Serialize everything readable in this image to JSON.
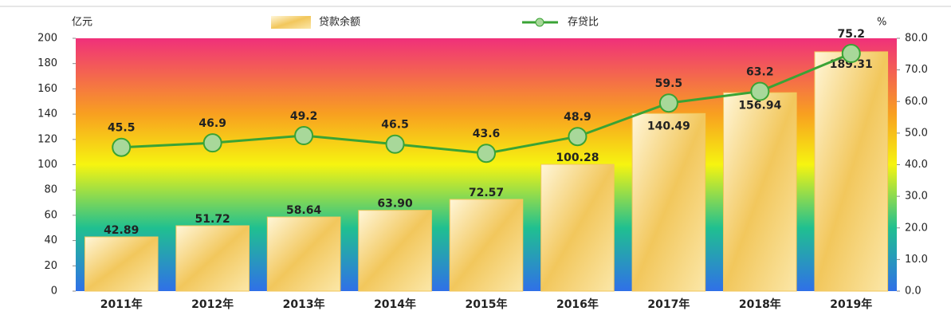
{
  "chart_data": {
    "type": "combo",
    "y_label": "亿元",
    "y2_label": "%",
    "categories": [
      "2011年",
      "2012年",
      "2013年",
      "2014年",
      "2015年",
      "2016年",
      "2017年",
      "2018年",
      "2019年"
    ],
    "series": [
      {
        "name": "贷款余额",
        "type": "bar",
        "color": "#f2c75c",
        "values": [
          42.89,
          51.72,
          58.64,
          63.9,
          72.57,
          100.28,
          140.49,
          156.94,
          189.31
        ],
        "value_labels": [
          "42.89",
          "51.72",
          "58.64",
          "63.90",
          "72.57",
          "100.28",
          "140.49",
          "156.94",
          "189.31"
        ]
      },
      {
        "name": "存贷比",
        "type": "line",
        "axis": "y2",
        "color": "#3aa335",
        "values": [
          45.5,
          46.9,
          49.2,
          46.5,
          43.6,
          48.9,
          59.5,
          63.2,
          75.2
        ]
      }
    ],
    "ylim": [
      0,
      200
    ],
    "yticks": [
      0,
      20,
      40,
      60,
      80,
      100,
      120,
      140,
      160,
      180,
      200
    ],
    "y2lim": [
      0,
      80
    ],
    "y2ticks": [
      {
        "value": 0,
        "label": "0.0"
      },
      {
        "value": 10,
        "label": "10.0"
      },
      {
        "value": 20,
        "label": "20.0"
      },
      {
        "value": 30,
        "label": "30.0"
      },
      {
        "value": 40,
        "label": "40.0"
      },
      {
        "value": 50,
        "label": "50.0"
      },
      {
        "value": 60,
        "label": "60.0"
      },
      {
        "value": 70,
        "label": "70.0"
      },
      {
        "value": 80,
        "label": "80.0"
      }
    ]
  }
}
